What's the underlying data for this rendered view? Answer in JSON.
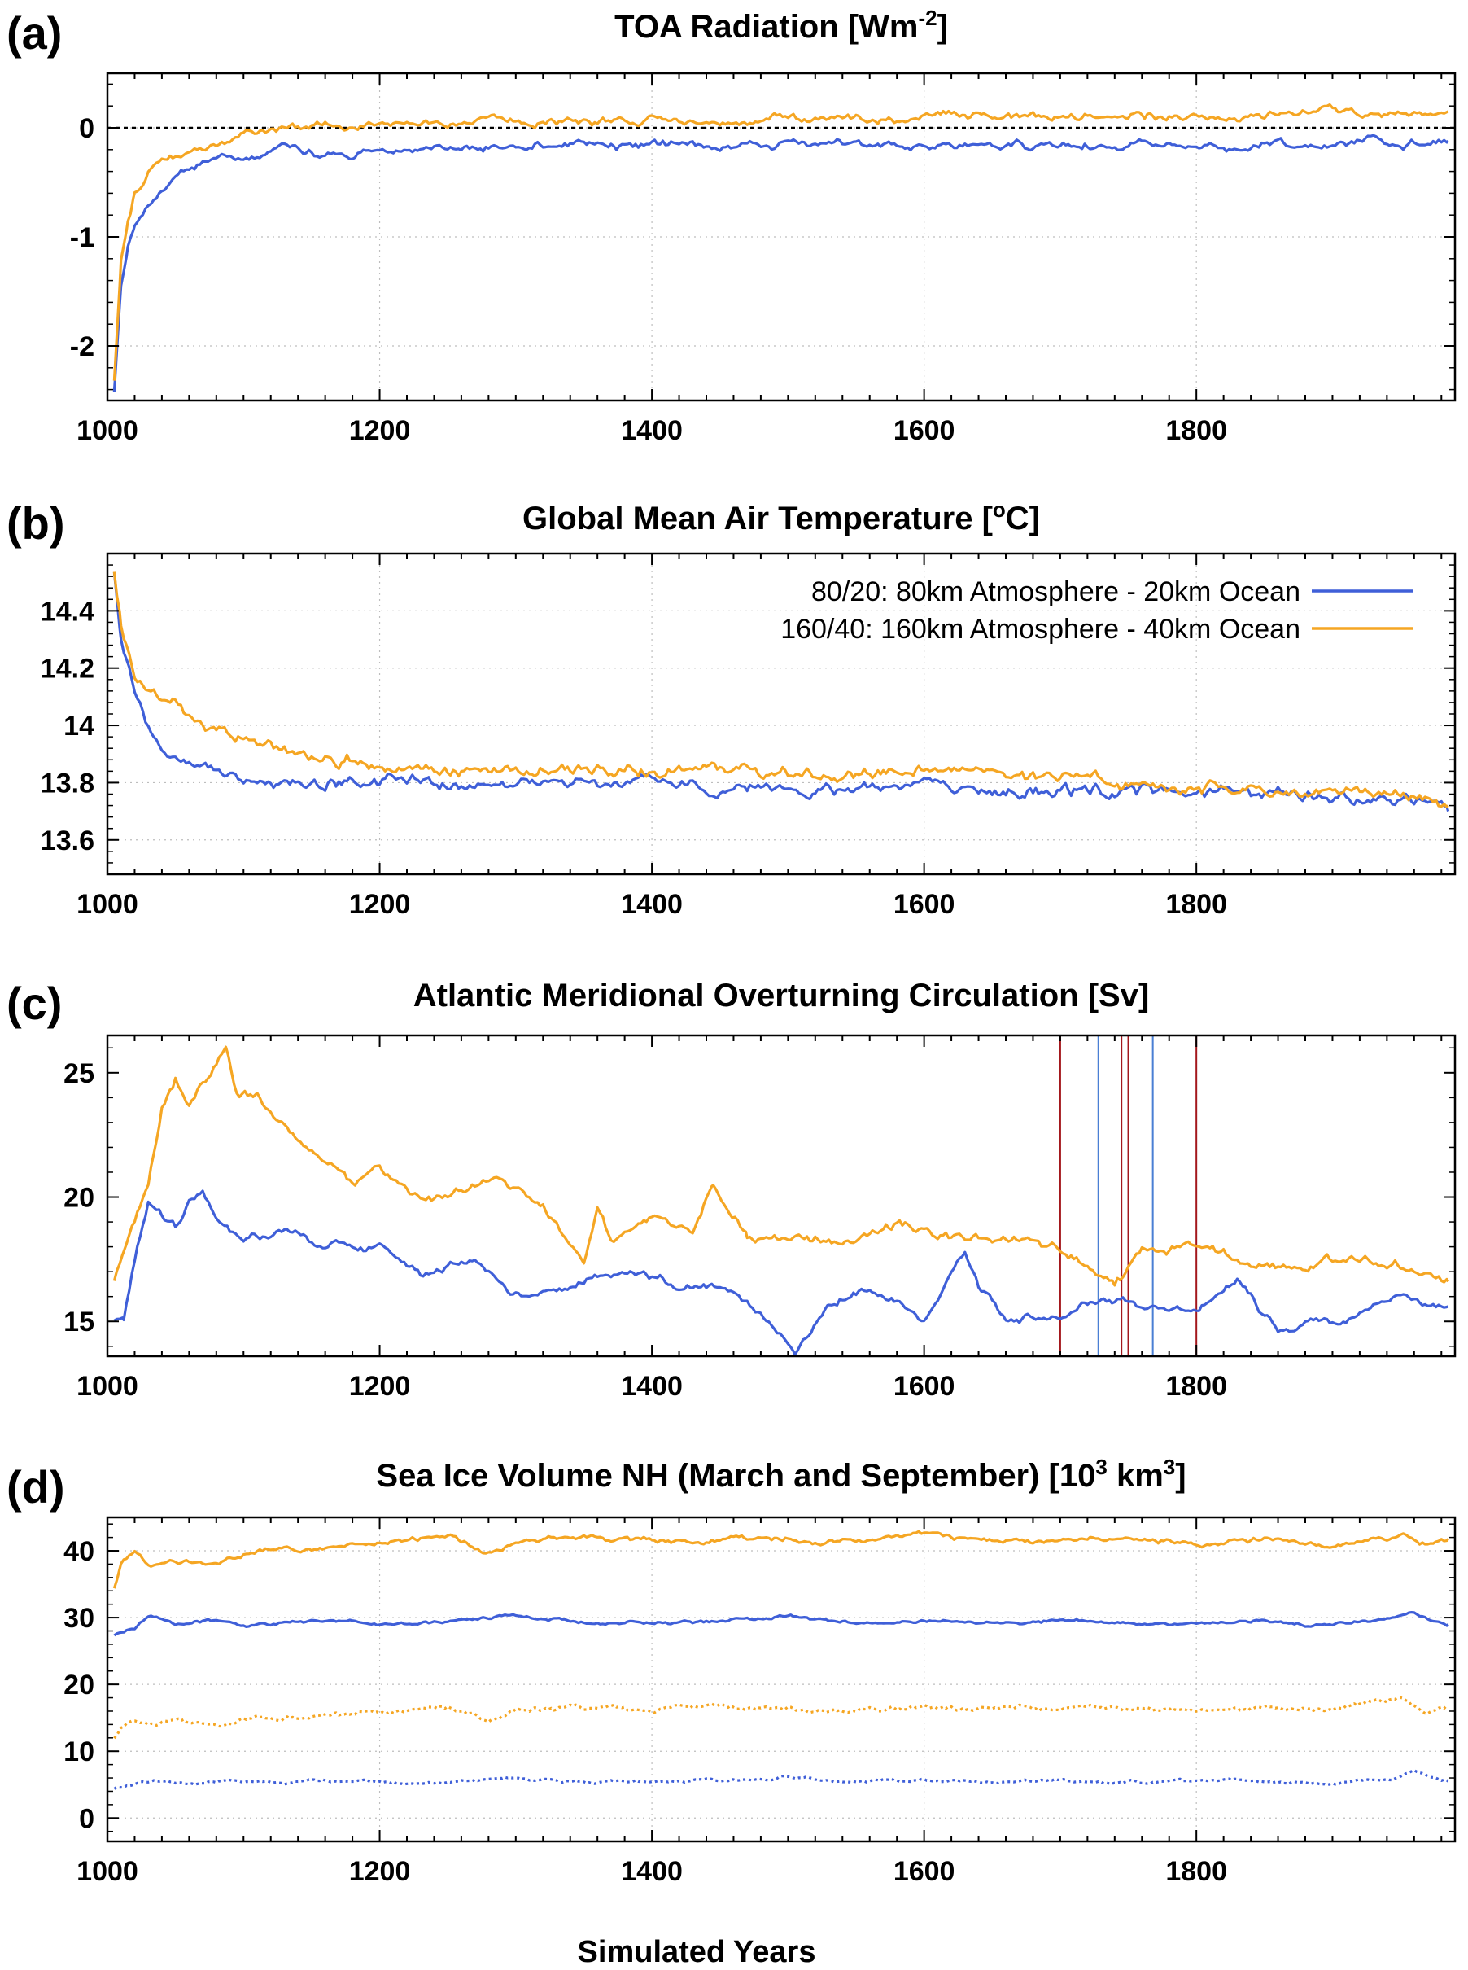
{
  "x_axis_label": "Simulated Years",
  "colors": {
    "run_80_20": "#3f5fd8",
    "run_160_40": "#f5a623",
    "event_red": "#a3171c",
    "event_blue": "#4a7fd4",
    "zero_line": "#000000",
    "grid": "#bdbdbd"
  },
  "chart_data": [
    {
      "id": "a",
      "letter": "(a)",
      "title_main": "TOA Radiation [Wm",
      "title_sup": "-2",
      "title_end": "]",
      "type": "line",
      "xlim": [
        1000,
        1990
      ],
      "ylim": [
        -2.5,
        0.5
      ],
      "x_ticks": [
        1000,
        1200,
        1400,
        1600,
        1800
      ],
      "y_ticks": [
        -2,
        -1,
        0
      ],
      "y_tick_labels": [
        "-2",
        "-1",
        "0"
      ],
      "zero_line": true,
      "grid": true,
      "series": [
        {
          "key": "run_80_20",
          "x": [
            1005,
            1010,
            1015,
            1020,
            1030,
            1040,
            1050,
            1060,
            1070,
            1080,
            1100,
            1150,
            1200,
            1250,
            1300,
            1350,
            1400,
            1450,
            1500,
            1550,
            1600,
            1650,
            1700,
            1750,
            1800,
            1850,
            1900,
            1950,
            1985
          ],
          "y": [
            -2.4,
            -1.45,
            -1.1,
            -0.9,
            -0.75,
            -0.55,
            -0.45,
            -0.38,
            -0.32,
            -0.28,
            -0.24,
            -0.22,
            -0.2,
            -0.18,
            -0.17,
            -0.16,
            -0.16,
            -0.17,
            -0.15,
            -0.16,
            -0.16,
            -0.15,
            -0.16,
            -0.15,
            -0.14,
            -0.15,
            -0.14,
            -0.13,
            -0.12
          ]
        },
        {
          "key": "run_160_40",
          "x": [
            1005,
            1010,
            1015,
            1020,
            1030,
            1040,
            1050,
            1060,
            1070,
            1080,
            1100,
            1150,
            1200,
            1250,
            1300,
            1350,
            1400,
            1450,
            1500,
            1550,
            1600,
            1650,
            1700,
            1750,
            1800,
            1850,
            1900,
            1950,
            1985
          ],
          "y": [
            -2.3,
            -1.2,
            -0.85,
            -0.6,
            -0.42,
            -0.32,
            -0.26,
            -0.2,
            -0.15,
            -0.1,
            -0.04,
            0.0,
            0.02,
            0.05,
            0.05,
            0.06,
            0.07,
            0.07,
            0.08,
            0.08,
            0.09,
            0.1,
            0.1,
            0.11,
            0.12,
            0.12,
            0.13,
            0.14,
            0.15
          ]
        }
      ]
    },
    {
      "id": "b",
      "letter": "(b)",
      "title_main": "Global Mean Air Temperature [",
      "title_sup": "o",
      "title_end": "C]",
      "type": "line",
      "xlim": [
        1000,
        1990
      ],
      "ylim": [
        13.48,
        14.6
      ],
      "x_ticks": [
        1000,
        1200,
        1400,
        1600,
        1800
      ],
      "y_ticks": [
        13.6,
        13.8,
        14.0,
        14.2,
        14.4
      ],
      "y_tick_labels": [
        "13.6",
        "13.8",
        "14",
        "14.2",
        "14.4"
      ],
      "grid": true,
      "legend": [
        {
          "key": "run_80_20",
          "label": "80/20: 80km Atmosphere - 20km Ocean"
        },
        {
          "key": "run_160_40",
          "label": "160/40: 160km Atmosphere - 40km Ocean"
        }
      ],
      "legend_position": "top-right",
      "series": [
        {
          "key": "run_80_20",
          "x": [
            1005,
            1010,
            1020,
            1030,
            1040,
            1050,
            1060,
            1080,
            1100,
            1150,
            1200,
            1250,
            1300,
            1350,
            1400,
            1450,
            1500,
            1550,
            1600,
            1650,
            1700,
            1750,
            1800,
            1850,
            1900,
            1950,
            1985
          ],
          "y": [
            14.55,
            14.3,
            14.12,
            14.0,
            13.92,
            13.88,
            13.86,
            13.84,
            13.83,
            13.81,
            13.8,
            13.79,
            13.79,
            13.8,
            13.79,
            13.79,
            13.78,
            13.78,
            13.79,
            13.77,
            13.77,
            13.77,
            13.76,
            13.76,
            13.75,
            13.74,
            13.7
          ]
        },
        {
          "key": "run_160_40",
          "x": [
            1005,
            1010,
            1020,
            1030,
            1040,
            1050,
            1060,
            1080,
            1100,
            1150,
            1200,
            1250,
            1300,
            1350,
            1400,
            1450,
            1500,
            1550,
            1600,
            1650,
            1700,
            1750,
            1800,
            1850,
            1900,
            1950,
            1985
          ],
          "y": [
            14.55,
            14.35,
            14.18,
            14.12,
            14.1,
            14.07,
            14.03,
            13.98,
            13.94,
            13.9,
            13.87,
            13.85,
            13.84,
            13.85,
            13.84,
            13.84,
            13.83,
            13.83,
            13.83,
            13.84,
            13.81,
            13.79,
            13.78,
            13.77,
            13.76,
            13.76,
            13.72
          ]
        }
      ]
    },
    {
      "id": "c",
      "letter": "(c)",
      "title_main": "Atlantic Meridional Overturning Circulation [Sv]",
      "title_sup": "",
      "title_end": "",
      "type": "line",
      "xlim": [
        1000,
        1990
      ],
      "ylim": [
        13.6,
        26.5
      ],
      "x_ticks": [
        1000,
        1200,
        1400,
        1600,
        1800
      ],
      "y_ticks": [
        15,
        20,
        25
      ],
      "y_tick_labels": [
        "15",
        "20",
        "25"
      ],
      "grid": false,
      "vlines": [
        {
          "x": 1700,
          "color_key": "event_red"
        },
        {
          "x": 1728,
          "color_key": "event_blue"
        },
        {
          "x": 1745,
          "color_key": "event_red"
        },
        {
          "x": 1750,
          "color_key": "event_red"
        },
        {
          "x": 1768,
          "color_key": "event_blue"
        },
        {
          "x": 1800,
          "color_key": "event_red"
        }
      ],
      "series": [
        {
          "key": "run_80_20",
          "x": [
            1005,
            1012,
            1020,
            1030,
            1040,
            1050,
            1060,
            1070,
            1080,
            1100,
            1130,
            1160,
            1200,
            1230,
            1270,
            1300,
            1340,
            1380,
            1420,
            1460,
            1490,
            1505,
            1530,
            1560,
            1600,
            1630,
            1640,
            1660,
            1700,
            1730,
            1760,
            1800,
            1830,
            1860,
            1900,
            1950,
            1985
          ],
          "y": [
            15.2,
            15.4,
            17.6,
            19.8,
            19.2,
            18.7,
            19.6,
            20.2,
            19.0,
            18.3,
            18.7,
            18.2,
            18.0,
            16.8,
            17.4,
            16.0,
            16.6,
            17.0,
            16.5,
            16.4,
            14.8,
            13.8,
            15.6,
            16.4,
            15.2,
            17.8,
            16.5,
            15.2,
            15.4,
            15.9,
            15.6,
            15.4,
            16.7,
            14.6,
            15.2,
            16.0,
            15.6
          ]
        },
        {
          "key": "run_160_40",
          "x": [
            1005,
            1012,
            1020,
            1030,
            1040,
            1050,
            1060,
            1070,
            1080,
            1087,
            1095,
            1110,
            1130,
            1160,
            1180,
            1200,
            1230,
            1260,
            1290,
            1320,
            1350,
            1360,
            1370,
            1400,
            1430,
            1445,
            1470,
            1500,
            1540,
            1580,
            1620,
            1660,
            1700,
            1730,
            1740,
            1760,
            1800,
            1830,
            1860,
            1900,
            1950,
            1985
          ],
          "y": [
            16.8,
            17.8,
            19.0,
            20.5,
            23.5,
            24.8,
            23.6,
            24.8,
            25.3,
            26.1,
            24.0,
            24.0,
            22.6,
            21.4,
            20.4,
            21.4,
            19.7,
            20.2,
            20.6,
            19.8,
            17.2,
            19.5,
            18.2,
            19.2,
            18.6,
            20.5,
            18.4,
            18.6,
            18.1,
            18.8,
            18.3,
            18.4,
            17.9,
            16.8,
            16.5,
            17.8,
            18.2,
            17.5,
            17.3,
            17.4,
            17.3,
            16.6
          ]
        }
      ]
    },
    {
      "id": "d",
      "letter": "(d)",
      "title_main": "Sea Ice Volume NH (March and September) [10",
      "title_sup": "3",
      "title_mid": " km",
      "title_sup2": "3",
      "title_end": "]",
      "type": "line",
      "xlim": [
        1000,
        1990
      ],
      "ylim": [
        -3.5,
        45
      ],
      "x_ticks": [
        1000,
        1200,
        1400,
        1600,
        1800
      ],
      "y_ticks": [
        0,
        10,
        20,
        30,
        40
      ],
      "y_tick_labels": [
        "0",
        "10",
        "20",
        "30",
        "40"
      ],
      "grid": true,
      "series": [
        {
          "key": "run_160_40",
          "dashed": false,
          "x": [
            1005,
            1010,
            1020,
            1030,
            1050,
            1080,
            1100,
            1150,
            1200,
            1250,
            1280,
            1300,
            1350,
            1400,
            1450,
            1500,
            1550,
            1600,
            1650,
            1700,
            1750,
            1800,
            1850,
            1900,
            1950,
            1970,
            1985
          ],
          "y": [
            34.5,
            38.0,
            39.8,
            37.8,
            38.3,
            37.6,
            39.6,
            40.3,
            41.2,
            42.4,
            39.6,
            41.5,
            42.2,
            41.4,
            41.8,
            41.7,
            41.5,
            42.6,
            41.6,
            41.7,
            41.8,
            41.3,
            41.8,
            40.9,
            42.2,
            40.9,
            41.8
          ]
        },
        {
          "key": "run_80_20",
          "dashed": false,
          "x": [
            1005,
            1010,
            1020,
            1030,
            1050,
            1080,
            1100,
            1150,
            1200,
            1250,
            1300,
            1350,
            1400,
            1450,
            1500,
            1550,
            1600,
            1650,
            1700,
            1750,
            1800,
            1850,
            1900,
            1950,
            1960,
            1985
          ],
          "y": [
            27.4,
            27.9,
            28.4,
            30.0,
            29.1,
            29.4,
            28.8,
            29.6,
            29.0,
            29.4,
            30.6,
            29.2,
            29.3,
            29.4,
            30.4,
            29.1,
            29.5,
            29.0,
            29.6,
            29.2,
            29.1,
            29.4,
            28.6,
            30.3,
            30.6,
            29.0
          ]
        },
        {
          "key": "run_160_40",
          "dashed": true,
          "x": [
            1005,
            1010,
            1020,
            1030,
            1050,
            1080,
            1100,
            1150,
            1200,
            1250,
            1280,
            1300,
            1350,
            1400,
            1450,
            1500,
            1550,
            1600,
            1650,
            1700,
            1750,
            1800,
            1850,
            1900,
            1950,
            1970,
            1985
          ],
          "y": [
            12.0,
            13.5,
            14.8,
            13.5,
            14.6,
            13.8,
            14.8,
            15.4,
            15.9,
            16.6,
            14.6,
            16.2,
            16.4,
            16.2,
            16.8,
            16.3,
            16.1,
            16.6,
            16.4,
            16.4,
            16.6,
            16.1,
            16.3,
            16.1,
            18.0,
            15.8,
            16.8
          ]
        },
        {
          "key": "run_80_20",
          "dashed": true,
          "x": [
            1005,
            1010,
            1020,
            1030,
            1050,
            1080,
            1100,
            1150,
            1200,
            1250,
            1300,
            1350,
            1400,
            1450,
            1500,
            1550,
            1600,
            1650,
            1700,
            1750,
            1800,
            1850,
            1900,
            1950,
            1960,
            1985
          ],
          "y": [
            4.6,
            4.8,
            5.0,
            5.6,
            5.2,
            5.4,
            5.2,
            5.6,
            5.4,
            5.5,
            5.9,
            5.4,
            5.4,
            5.6,
            6.2,
            5.4,
            5.6,
            5.3,
            5.7,
            5.4,
            5.6,
            5.5,
            5.3,
            6.0,
            6.8,
            5.5
          ]
        }
      ]
    }
  ]
}
